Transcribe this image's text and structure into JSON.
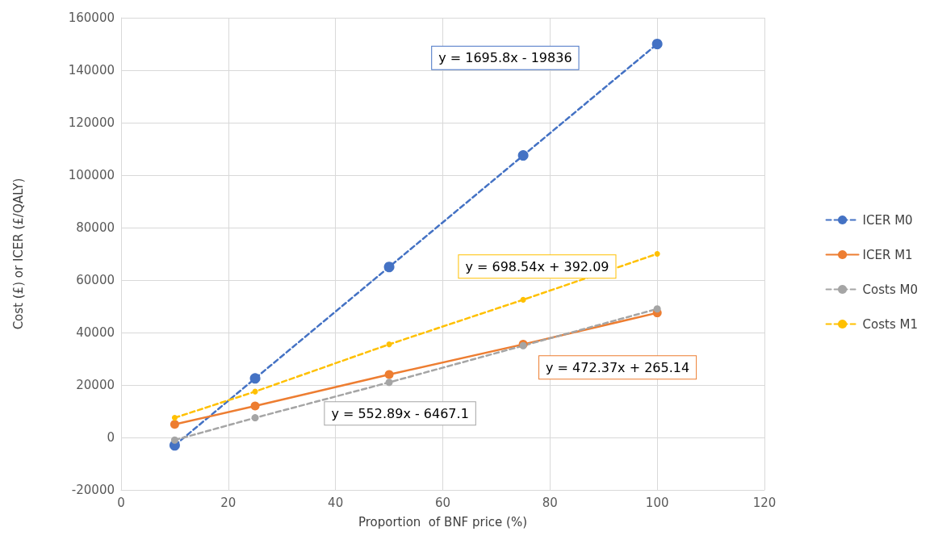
{
  "chart_data": {
    "type": "line",
    "xlabel": "Proportion  of BNF price (%)",
    "ylabel": "Cost (£) or ICER (£/QALY)",
    "x": [
      10,
      25,
      50,
      75,
      100
    ],
    "series": [
      {
        "name": "ICER M0",
        "color": "#4472c4",
        "line_style": "dashed",
        "values": [
          -3000,
          22500,
          65000,
          107500,
          150000
        ]
      },
      {
        "name": "ICER M1",
        "color": "#ed7d31",
        "line_style": "solid",
        "values": [
          5000,
          12000,
          24000,
          35500,
          47500
        ]
      },
      {
        "name": "Costs M0",
        "color": "#a5a5a5",
        "line_style": "dashed",
        "values": [
          -1000,
          7500,
          21000,
          35000,
          49000
        ]
      },
      {
        "name": "Costs M1",
        "color": "#ffc000",
        "line_style": "dashed",
        "values": [
          7500,
          17500,
          35500,
          52500,
          70000
        ]
      }
    ],
    "annotations": [
      "y = 1695.8x - 19836",
      "y = 472.37x + 265.14",
      "y = 552.89x - 6467.1",
      "y = 698.54x + 392.09"
    ],
    "xlim": [
      0,
      120
    ],
    "xticks": [
      0,
      20,
      40,
      60,
      80,
      100,
      120
    ],
    "ylim": [
      -20000,
      160000
    ],
    "yticks": [
      -20000,
      0,
      20000,
      40000,
      60000,
      80000,
      100000,
      120000,
      140000,
      160000
    ],
    "grid": true,
    "legend": "right",
    "marker": "circle"
  }
}
